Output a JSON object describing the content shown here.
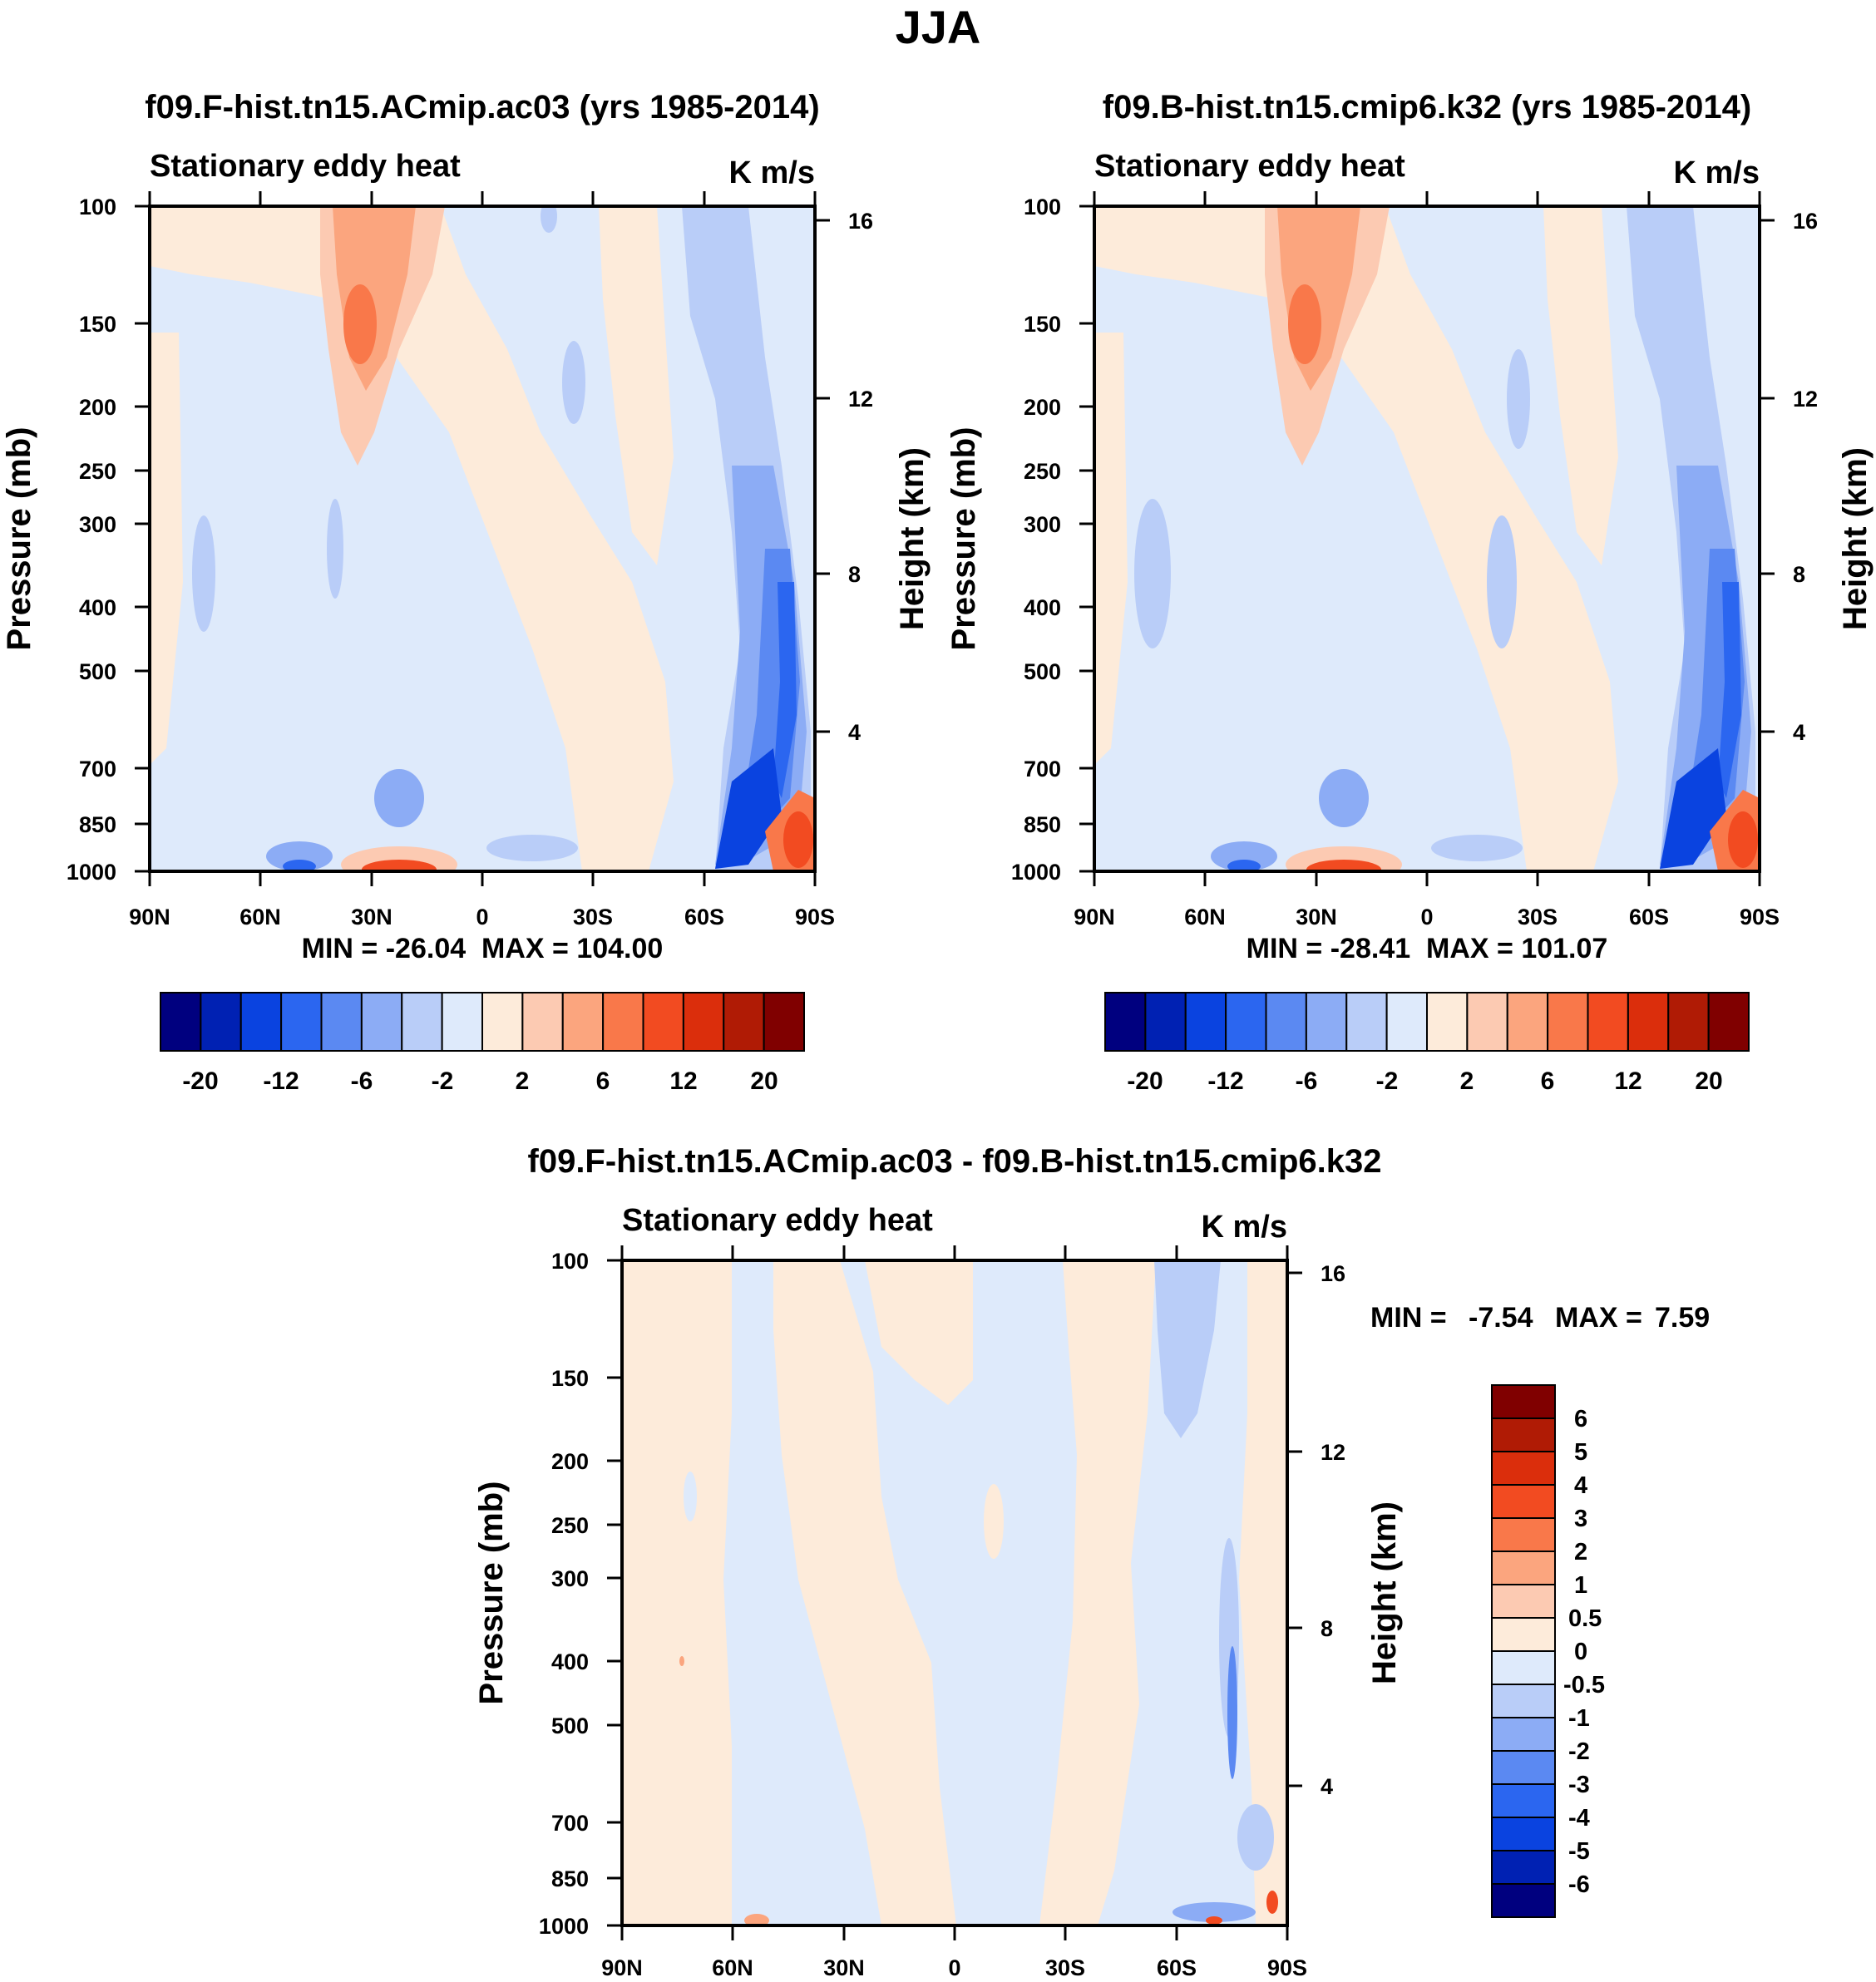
{
  "figure_title": "JJA",
  "chart_data": [
    {
      "type": "contour",
      "title": "f09.F-hist.tn15.ACmip.ac03 (yrs 1985-2014)",
      "subtitle_left": "Stationary eddy heat",
      "subtitle_right": "K m/s",
      "ylabel": "Pressure (mb)",
      "y2label": "Height (km)",
      "xticks": [
        "90N",
        "60N",
        "30N",
        "0",
        "30S",
        "60S",
        "90S"
      ],
      "yticks": [
        "100",
        "150",
        "200",
        "250",
        "300",
        "400",
        "500",
        "700",
        "850",
        "1000"
      ],
      "y2ticks": [
        "16",
        "12",
        "8",
        "4"
      ],
      "stats": "MIN = -26.04  MAX = 104.00",
      "min": -26.04,
      "max": 104.0,
      "colorbar_labels": [
        "-20",
        "-12",
        "-6",
        "-2",
        "2",
        "6",
        "12",
        "20"
      ]
    },
    {
      "type": "contour",
      "title": "f09.B-hist.tn15.cmip6.k32 (yrs 1985-2014)",
      "subtitle_left": "Stationary eddy heat",
      "subtitle_right": "K m/s",
      "ylabel": "Pressure (mb)",
      "y2label": "Height (km)",
      "xticks": [
        "90N",
        "60N",
        "30N",
        "0",
        "30S",
        "60S",
        "90S"
      ],
      "yticks": [
        "100",
        "150",
        "200",
        "250",
        "300",
        "400",
        "500",
        "700",
        "850",
        "1000"
      ],
      "y2ticks": [
        "16",
        "12",
        "8",
        "4"
      ],
      "stats": "MIN = -28.41  MAX = 101.07",
      "min": -28.41,
      "max": 101.07,
      "colorbar_labels": [
        "-20",
        "-12",
        "-6",
        "-2",
        "2",
        "6",
        "12",
        "20"
      ]
    },
    {
      "type": "contour",
      "title": "f09.F-hist.tn15.ACmip.ac03 - f09.B-hist.tn15.cmip6.k32",
      "subtitle_left": "Stationary eddy heat",
      "subtitle_right": "K m/s",
      "ylabel": "Pressure (mb)",
      "y2label": "Height (km)",
      "xticks": [
        "90N",
        "60N",
        "30N",
        "0",
        "30S",
        "60S",
        "90S"
      ],
      "yticks": [
        "100",
        "150",
        "200",
        "250",
        "300",
        "400",
        "500",
        "700",
        "850",
        "1000"
      ],
      "y2ticks": [
        "16",
        "12",
        "8",
        "4"
      ],
      "stats_min_label": "MIN =",
      "stats_min_value": "-7.54",
      "stats_max_label": "MAX =",
      "stats_max_value": "7.59",
      "min": -7.54,
      "max": 7.59,
      "colorbar_labels": [
        "6",
        "5",
        "4",
        "3",
        "2",
        "1",
        "0.5",
        "0",
        "-0.5",
        "-1",
        "-2",
        "-3",
        "-4",
        "-5",
        "-6"
      ]
    }
  ],
  "palette": [
    "#00007f",
    "#0021b3",
    "#0a43e0",
    "#2b66f0",
    "#5b89f2",
    "#8cacf5",
    "#b9cdf8",
    "#deeafb",
    "#fdebda",
    "#fccab2",
    "#fba57e",
    "#f9784a",
    "#f24b21",
    "#db2e0c",
    "#b01b05",
    "#800000"
  ]
}
